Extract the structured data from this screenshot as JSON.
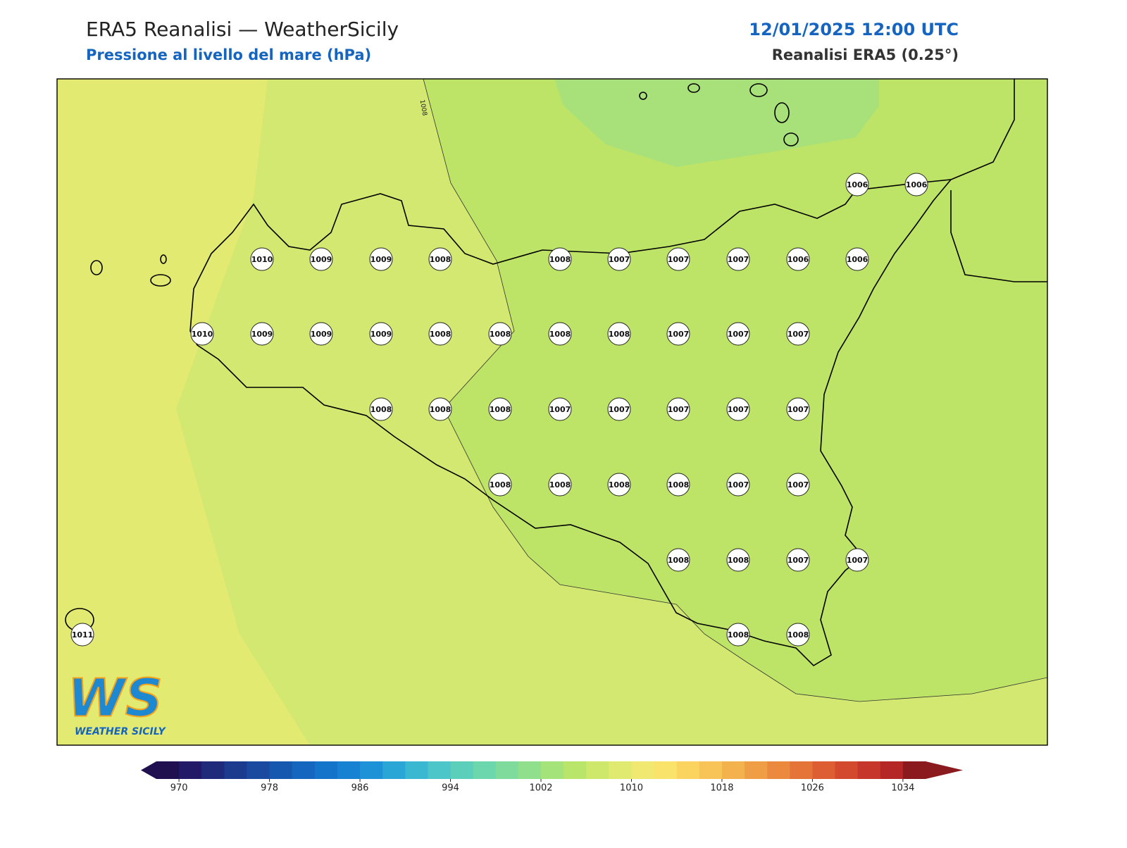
{
  "header": {
    "title": "ERA5 Reanalisi — WeatherSicily",
    "subtitle": "Pressione al livello del mare (hPa)",
    "datetime": "12/01/2025 12:00 UTC",
    "source": "Reanalisi ERA5 (0.25°)"
  },
  "contour_labels": [
    1008
  ],
  "stations": {
    "values": [
      1006,
      1006,
      1010,
      1009,
      1009,
      1008,
      1008,
      1007,
      1007,
      1007,
      1006,
      1006,
      1010,
      1009,
      1009,
      1009,
      1008,
      1008,
      1008,
      1008,
      1007,
      1007,
      1007,
      1008,
      1008,
      1008,
      1007,
      1007,
      1007,
      1007,
      1007,
      1008,
      1008,
      1008,
      1008,
      1007,
      1007,
      1008,
      1008,
      1007,
      1007,
      1011,
      1008,
      1008
    ]
  },
  "colorbar": {
    "lim": [
      968,
      1036
    ],
    "ticks": [
      970,
      978,
      986,
      994,
      1002,
      1010,
      1018,
      1026,
      1034
    ],
    "colors": [
      "#20104f",
      "#221a66",
      "#1f2a7a",
      "#1c3a8e",
      "#1a4aa0",
      "#1658b0",
      "#1466bf",
      "#1474c9",
      "#1782d1",
      "#1e92d6",
      "#2aa6d6",
      "#3ab8d2",
      "#4cc6c8",
      "#5ccfba",
      "#6cd6ac",
      "#7edb9c",
      "#90df8c",
      "#a4e27a",
      "#b8e56a",
      "#cde86a",
      "#e0ea70",
      "#f0e870",
      "#fae36a",
      "#fbd460",
      "#f8c458",
      "#f4b24f",
      "#f09e46",
      "#eb8a3f",
      "#e57439",
      "#dd5e33",
      "#d3492e",
      "#c6362b",
      "#b52626",
      "#8a1a1e"
    ]
  },
  "logo": {
    "mark": "WS",
    "text": "WEATHER SICILY"
  }
}
